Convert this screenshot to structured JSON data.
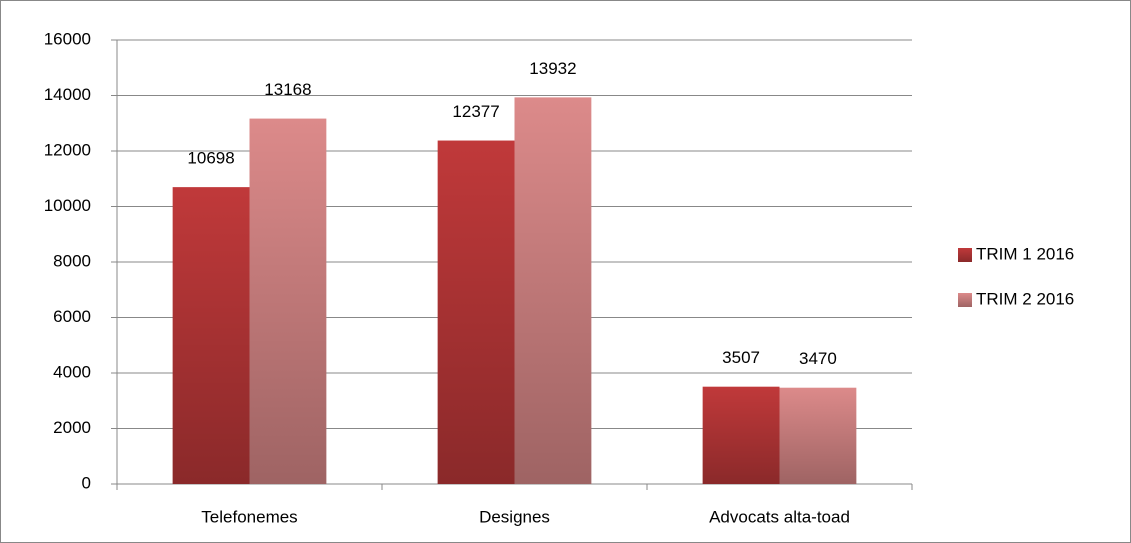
{
  "chart_data": {
    "type": "bar",
    "categories": [
      "Telefonemes",
      "Designes",
      "Advocats alta-toad"
    ],
    "series": [
      {
        "name": "TRIM 1 2016",
        "color": "#c0393a",
        "values": [
          10698,
          12377,
          3507
        ]
      },
      {
        "name": "TRIM 2 2016",
        "color": "#dc8a8a",
        "values": [
          13168,
          13932,
          3470
        ]
      }
    ],
    "ylim": [
      0,
      16000
    ],
    "yticks": [
      0,
      2000,
      4000,
      6000,
      8000,
      10000,
      12000,
      14000,
      16000
    ],
    "grid": true,
    "legend": "right",
    "data_labels": true
  }
}
